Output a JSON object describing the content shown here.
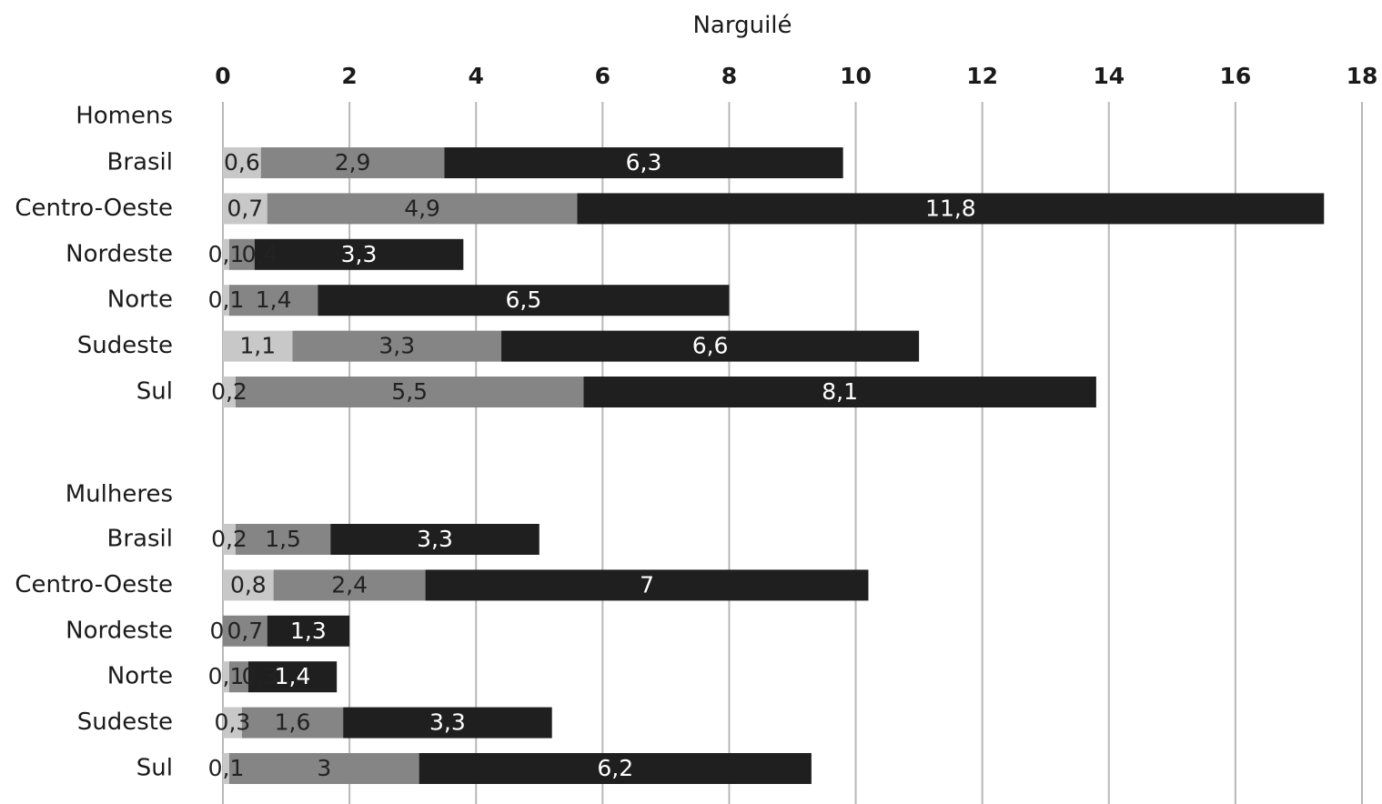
{
  "chart_data": {
    "type": "bar",
    "orientation": "horizontal",
    "stacked": true,
    "title": "Narguilé",
    "xlim": [
      0,
      18
    ],
    "x_ticks": [
      0,
      2,
      4,
      6,
      8,
      10,
      12,
      14,
      16,
      18
    ],
    "grid": true,
    "legend": "none",
    "colors": [
      "#c8c8c8",
      "#858585",
      "#1f1f1f"
    ],
    "label_colors": [
      "#222222",
      "#222222",
      "#ffffff"
    ],
    "groups": [
      {
        "name": "Homens",
        "categories": [
          {
            "label": "Brasil",
            "values": [
              0.6,
              2.9,
              6.3
            ],
            "labels": [
              "0,6",
              "2,9",
              "6,3"
            ]
          },
          {
            "label": "Centro-Oeste",
            "values": [
              0.7,
              4.9,
              11.8
            ],
            "labels": [
              "0,7",
              "4,9",
              "11,8"
            ]
          },
          {
            "label": "Nordeste",
            "values": [
              0.1,
              0.4,
              3.3
            ],
            "labels": [
              "0,1",
              "0,4",
              "3,3"
            ]
          },
          {
            "label": "Norte",
            "values": [
              0.1,
              1.4,
              6.5
            ],
            "labels": [
              "0,1",
              "1,4",
              "6,5"
            ]
          },
          {
            "label": "Sudeste",
            "values": [
              1.1,
              3.3,
              6.6
            ],
            "labels": [
              "1,1",
              "3,3",
              "6,6"
            ]
          },
          {
            "label": "Sul",
            "values": [
              0.2,
              5.5,
              8.1
            ],
            "labels": [
              "0,2",
              "5,5",
              "8,1"
            ]
          }
        ]
      },
      {
        "name": "Mulheres",
        "categories": [
          {
            "label": "Brasil",
            "values": [
              0.2,
              1.5,
              3.3
            ],
            "labels": [
              "0,2",
              "1,5",
              "3,3"
            ]
          },
          {
            "label": "Centro-Oeste",
            "values": [
              0.8,
              2.4,
              7
            ],
            "labels": [
              "0,8",
              "2,4",
              "7"
            ]
          },
          {
            "label": "Nordeste",
            "values": [
              0,
              0.7,
              1.3
            ],
            "labels": [
              "0",
              "0,7",
              "1,3"
            ]
          },
          {
            "label": "Norte",
            "values": [
              0.1,
              0.3,
              1.4
            ],
            "labels": [
              "0,1",
              "0,3",
              "1,4"
            ]
          },
          {
            "label": "Sudeste",
            "values": [
              0.3,
              1.6,
              3.3
            ],
            "labels": [
              "0,3",
              "1,6",
              "3,3"
            ]
          },
          {
            "label": "Sul",
            "values": [
              0.1,
              3,
              6.2
            ],
            "labels": [
              "0,1",
              "3",
              "6,2"
            ]
          }
        ]
      }
    ]
  }
}
